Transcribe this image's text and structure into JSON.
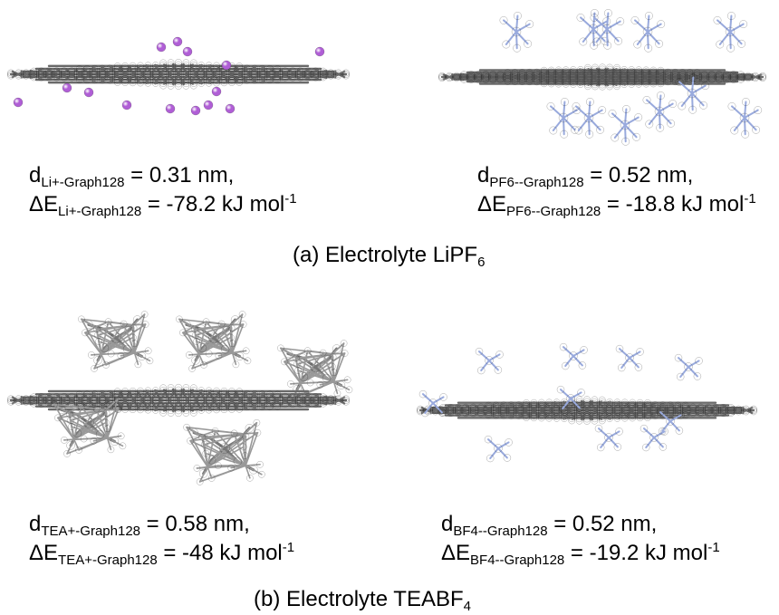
{
  "panel_a": {
    "left": {
      "d_sub": "Li+-Graph128",
      "d_value": " = 0.31 nm,",
      "e_sub": "Li+-Graph128",
      "e_value": " = -78.2 kJ mol",
      "e_sup": "-1",
      "ion": "Li+"
    },
    "right": {
      "d_sub": "PF6--Graph128",
      "d_value": " = 0.52 nm,",
      "e_sub": "PF6--Graph128",
      "e_value": " = -18.8 kJ mol",
      "e_sup": "-1",
      "ion": "PF6-"
    },
    "caption_prefix": "(a) Electrolyte LiPF",
    "caption_sub": "6"
  },
  "panel_b": {
    "left": {
      "d_sub": "TEA+-Graph128",
      "d_value": " = 0.58 nm,",
      "e_sub": "TEA+-Graph128",
      "e_value": " = -48 kJ mol",
      "e_sup": "-1",
      "ion": "TEA+"
    },
    "right": {
      "d_sub": "BF4--Graph128",
      "d_value": " = 0.52 nm,",
      "e_sub": "BF4--Graph128",
      "e_value": " = -19.2 kJ mol",
      "e_sup": "-1",
      "ion": "BF4-"
    },
    "caption_prefix": "(b) Electrolyte TEABF",
    "caption_sub": "4"
  },
  "symbols": {
    "d": "d",
    "delta_e": "ΔE"
  },
  "colors": {
    "graphene": "#6b6b6b",
    "lithium": "#b05ed6",
    "phosphorus": "#d98adf",
    "boron": "#f0a8a0",
    "fluorine": "#7fe0e6",
    "nitrogen": "#1f3fd6",
    "carbon": "#5a5a5a",
    "hydrogen": "#ffffff"
  }
}
